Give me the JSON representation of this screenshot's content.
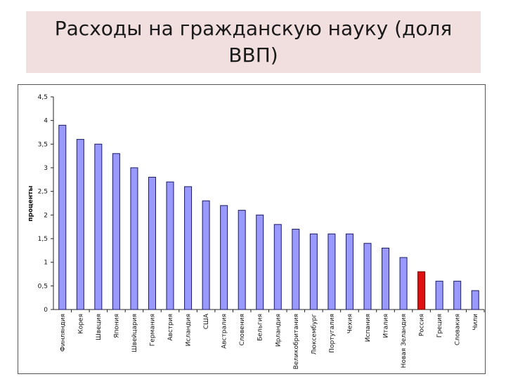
{
  "title": "Расходы на гражданскую науку (доля ВВП)",
  "chart_data": {
    "type": "bar",
    "title": "",
    "xlabel": "",
    "ylabel": "проценты",
    "ylim": [
      0,
      4.5
    ],
    "yticks": [
      "0",
      "0,5",
      "1",
      "1,5",
      "2",
      "2,5",
      "3",
      "3,5",
      "4",
      "4,5"
    ],
    "grid": false,
    "categories": [
      "Финляндия",
      "Корея",
      "Швеция",
      "Япония",
      "Швейцария",
      "Германия",
      "Австрия",
      "Исландия",
      "США",
      "Австралия",
      "Словения",
      "Бельгия",
      "Ирландия",
      "Великобритания",
      "Люксембург",
      "Португалия",
      "Чехия",
      "Испания",
      "Италия",
      "Новая Зеландия",
      "Россия",
      "Греция",
      "Словакия",
      "Чили"
    ],
    "values": [
      3.9,
      3.6,
      3.5,
      3.3,
      3.0,
      2.8,
      2.7,
      2.6,
      2.3,
      2.2,
      2.1,
      2.0,
      1.8,
      1.7,
      1.6,
      1.6,
      1.6,
      1.4,
      1.3,
      1.1,
      0.8,
      0.6,
      0.6,
      0.4
    ],
    "colors": {
      "bar_fill": "#9999ff",
      "bar_stroke": "#1a1a66",
      "highlight_fill": "#e01010",
      "highlight_stroke": "#660000"
    },
    "highlight_category": "Россия"
  }
}
